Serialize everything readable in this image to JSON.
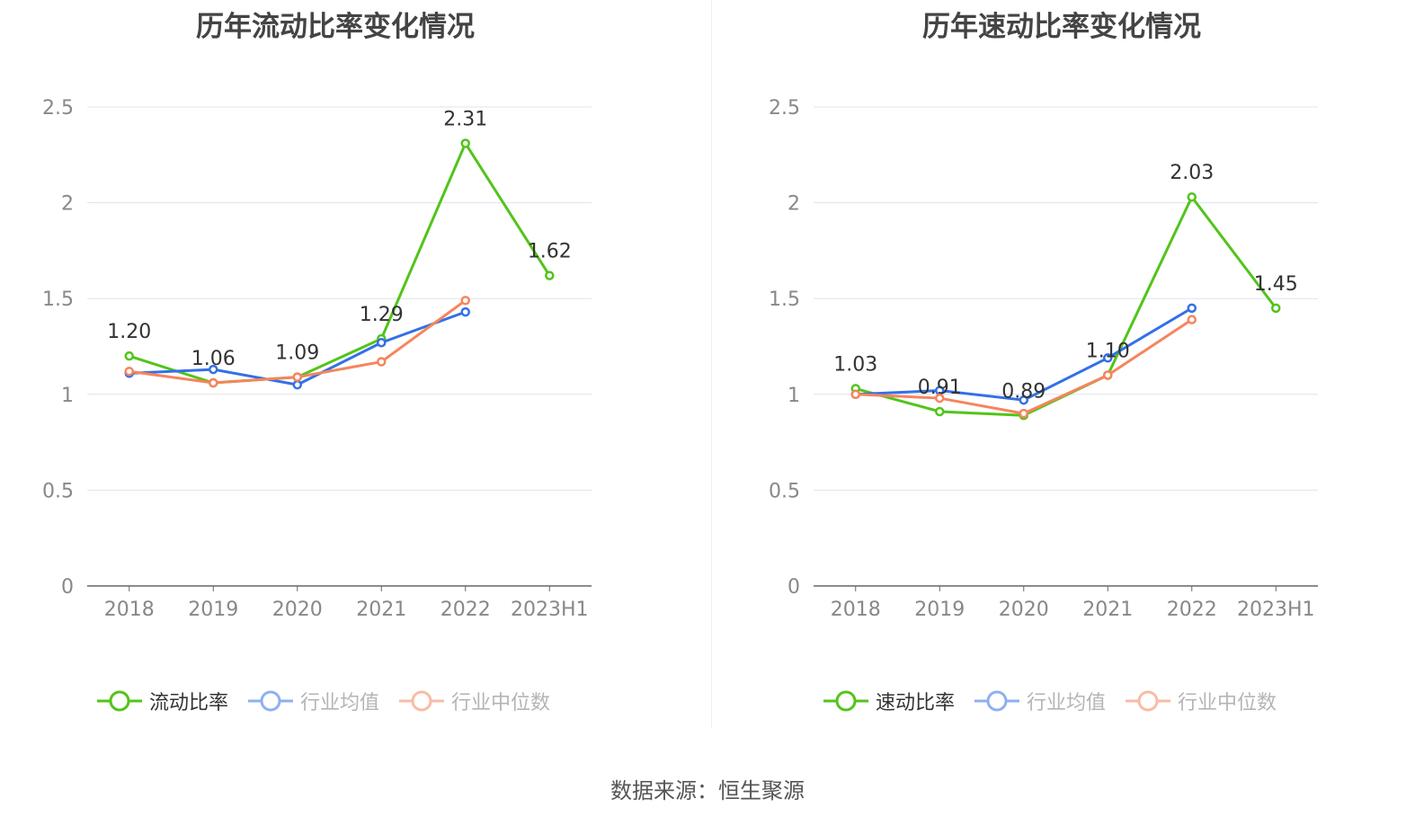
{
  "source_label": "数据来源：恒生聚源",
  "colors": {
    "main": "#52c41a",
    "avg": "#3370e6",
    "median": "#f5855d"
  },
  "chart_data": [
    {
      "type": "line",
      "title": "历年流动比率变化情况",
      "categories": [
        "2018",
        "2019",
        "2020",
        "2021",
        "2022",
        "2023H1"
      ],
      "ylim": [
        0,
        2.5
      ],
      "yticks": [
        "0",
        "0.5",
        "1",
        "1.5",
        "2",
        "2.5"
      ],
      "grid": true,
      "legend_position": "bottom",
      "series": [
        {
          "name": "流动比率",
          "key": "main",
          "values": [
            1.2,
            1.06,
            1.09,
            1.29,
            2.31,
            1.62
          ],
          "labels": [
            "1.20",
            "1.06",
            "1.09",
            "1.29",
            "2.31",
            "1.62"
          ],
          "active": true
        },
        {
          "name": "行业均值",
          "key": "avg",
          "values": [
            1.11,
            1.13,
            1.05,
            1.27,
            1.43,
            null
          ],
          "active": false
        },
        {
          "name": "行业中位数",
          "key": "median",
          "values": [
            1.12,
            1.06,
            1.09,
            1.17,
            1.49,
            null
          ],
          "active": false
        }
      ]
    },
    {
      "type": "line",
      "title": "历年速动比率变化情况",
      "categories": [
        "2018",
        "2019",
        "2020",
        "2021",
        "2022",
        "2023H1"
      ],
      "ylim": [
        0,
        2.5
      ],
      "yticks": [
        "0",
        "0.5",
        "1",
        "1.5",
        "2",
        "2.5"
      ],
      "grid": true,
      "legend_position": "bottom",
      "series": [
        {
          "name": "速动比率",
          "key": "main",
          "values": [
            1.03,
            0.91,
            0.89,
            1.1,
            2.03,
            1.45
          ],
          "labels": [
            "1.03",
            "0.91",
            "0.89",
            "1.10",
            "2.03",
            "1.45"
          ],
          "active": true
        },
        {
          "name": "行业均值",
          "key": "avg",
          "values": [
            1.0,
            1.02,
            0.97,
            1.19,
            1.45,
            null
          ],
          "active": false
        },
        {
          "name": "行业中位数",
          "key": "median",
          "values": [
            1.0,
            0.98,
            0.9,
            1.1,
            1.39,
            null
          ],
          "active": false
        }
      ]
    }
  ]
}
